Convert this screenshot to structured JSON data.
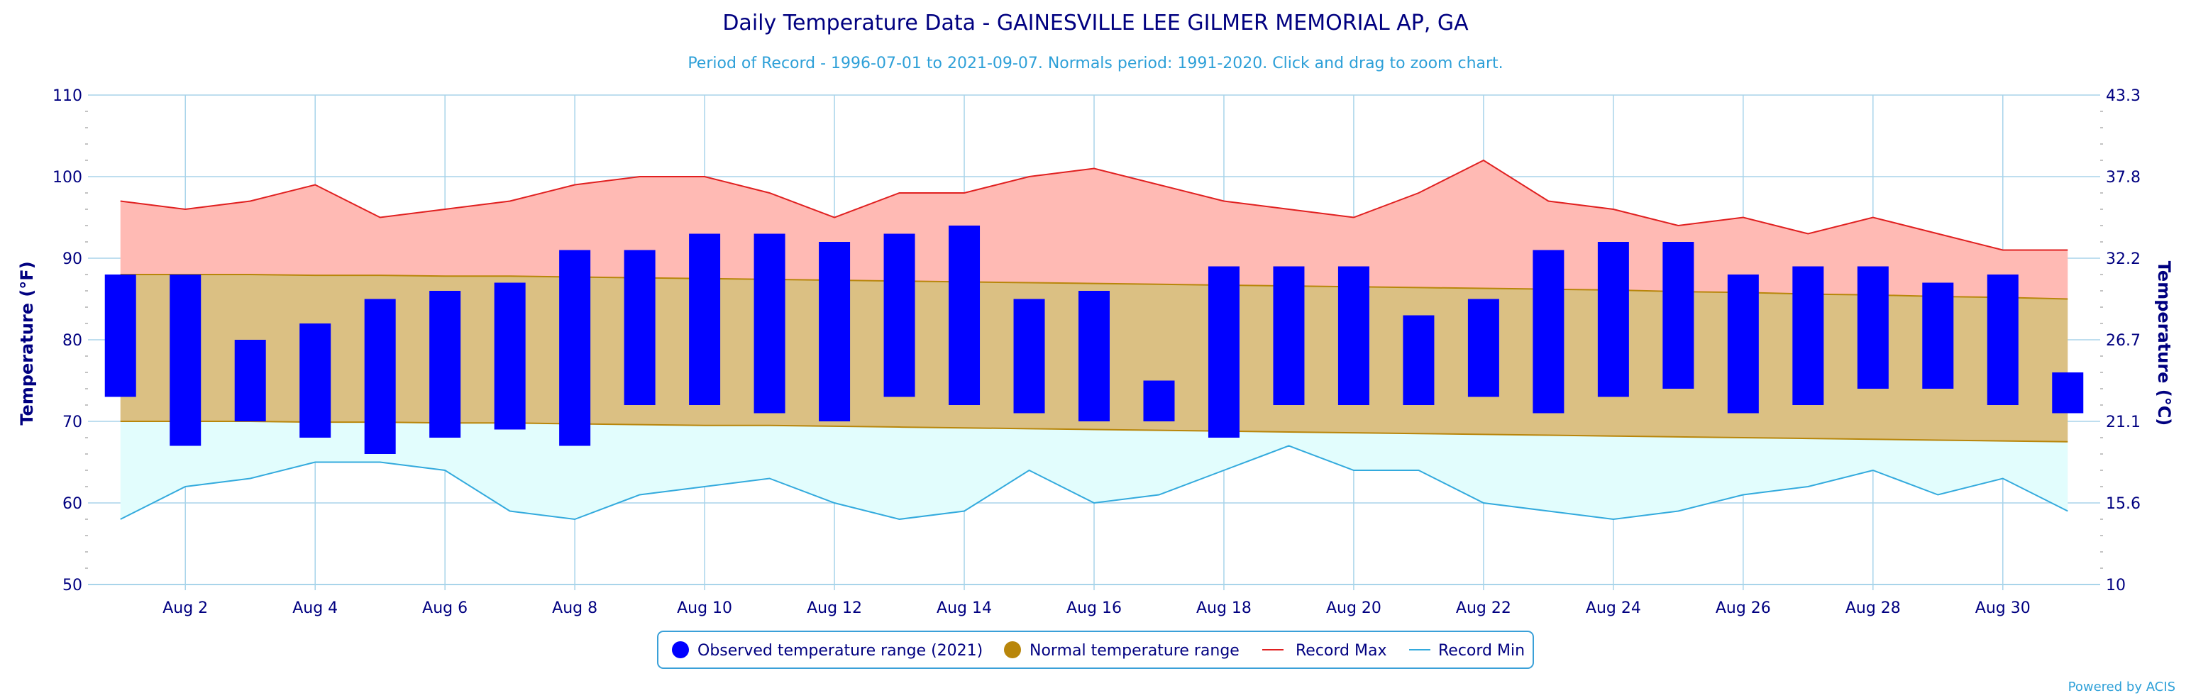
{
  "chart_data": {
    "type": "bar",
    "title": "Daily Temperature Data - GAINESVILLE LEE GILMER MEMORIAL AP, GA",
    "subtitle": "Period of Record - 1996-07-01 to 2021-09-07. Normals period: 1991-2020. Click and drag to zoom chart.",
    "ylabel_left": "Temperature (°F)",
    "ylabel_right": "Temperature (°C)",
    "ylim": [
      50,
      110
    ],
    "y_ticks_left": [
      "50",
      "60",
      "70",
      "80",
      "90",
      "100",
      "110"
    ],
    "y_ticks_right": [
      "10",
      "15.6",
      "21.1",
      "26.7",
      "32.2",
      "37.8",
      "43.3"
    ],
    "x_range": [
      1,
      31
    ],
    "x_ticks": [
      {
        "day": 2,
        "label": "Aug 2"
      },
      {
        "day": 4,
        "label": "Aug 4"
      },
      {
        "day": 6,
        "label": "Aug 6"
      },
      {
        "day": 8,
        "label": "Aug 8"
      },
      {
        "day": 10,
        "label": "Aug 10"
      },
      {
        "day": 12,
        "label": "Aug 12"
      },
      {
        "day": 14,
        "label": "Aug 14"
      },
      {
        "day": 16,
        "label": "Aug 16"
      },
      {
        "day": 18,
        "label": "Aug 18"
      },
      {
        "day": 20,
        "label": "Aug 20"
      },
      {
        "day": 22,
        "label": "Aug 22"
      },
      {
        "day": 24,
        "label": "Aug 24"
      },
      {
        "day": 26,
        "label": "Aug 26"
      },
      {
        "day": 28,
        "label": "Aug 28"
      },
      {
        "day": 30,
        "label": "Aug 30"
      }
    ],
    "grid": true,
    "legend_position": "bottom-center",
    "legend": {
      "observed": "Observed temperature range (2021)",
      "normal": "Normal temperature range",
      "record_max": "Record Max",
      "record_min": "Record Min"
    },
    "credit": "Powered by ACIS",
    "colors": {
      "observed": "#0000ff",
      "normal_fill": "#dbc083",
      "normal_line": "#b8860b",
      "record_max_fill": "#ffbab4",
      "record_max_line": "#e02020",
      "record_min_fill": "#e2fdfd",
      "record_min_line": "#33aadd",
      "title": "#000080",
      "subtitle": "#2ea0d8",
      "axis": "#000080",
      "grid": "#a8d4ea"
    },
    "days": [
      1,
      2,
      3,
      4,
      5,
      6,
      7,
      8,
      9,
      10,
      11,
      12,
      13,
      14,
      15,
      16,
      17,
      18,
      19,
      20,
      21,
      22,
      23,
      24,
      25,
      26,
      27,
      28,
      29,
      30,
      31
    ],
    "observed": {
      "max": [
        88,
        88,
        80,
        82,
        85,
        86,
        87,
        91,
        91,
        93,
        93,
        92,
        93,
        94,
        85,
        86,
        75,
        89,
        89,
        89,
        83,
        85,
        91,
        92,
        92,
        88,
        89,
        89,
        87,
        88,
        76
      ],
      "min": [
        73,
        67,
        70,
        68,
        66,
        68,
        69,
        67,
        72,
        72,
        71,
        70,
        73,
        72,
        71,
        70,
        70,
        68,
        72,
        72,
        72,
        73,
        71,
        73,
        74,
        71,
        72,
        74,
        74,
        72,
        71
      ]
    },
    "normal_max": [
      88,
      88,
      88,
      87.9,
      87.9,
      87.8,
      87.8,
      87.7,
      87.6,
      87.5,
      87.4,
      87.3,
      87.2,
      87.1,
      87,
      86.9,
      86.8,
      86.7,
      86.6,
      86.5,
      86.4,
      86.3,
      86.2,
      86.1,
      85.9,
      85.8,
      85.6,
      85.5,
      85.3,
      85.2,
      85
    ],
    "normal_min": [
      70,
      70,
      70,
      69.9,
      69.9,
      69.8,
      69.8,
      69.7,
      69.6,
      69.5,
      69.5,
      69.4,
      69.3,
      69.2,
      69.1,
      69,
      68.9,
      68.8,
      68.7,
      68.6,
      68.5,
      68.4,
      68.3,
      68.2,
      68.1,
      68,
      67.9,
      67.8,
      67.7,
      67.6,
      67.5
    ],
    "record_max": [
      97,
      96,
      97,
      99,
      95,
      96,
      97,
      99,
      100,
      100,
      98,
      95,
      98,
      98,
      100,
      101,
      99,
      97,
      96,
      95,
      98,
      102,
      97,
      96,
      94,
      95,
      93,
      95,
      93,
      91,
      91
    ],
    "record_min": [
      58,
      62,
      63,
      65,
      65,
      64,
      59,
      58,
      61,
      62,
      63,
      60,
      58,
      59,
      64,
      60,
      61,
      64,
      67,
      64,
      64,
      60,
      59,
      58,
      59,
      61,
      62,
      64,
      61,
      63,
      59
    ]
  }
}
